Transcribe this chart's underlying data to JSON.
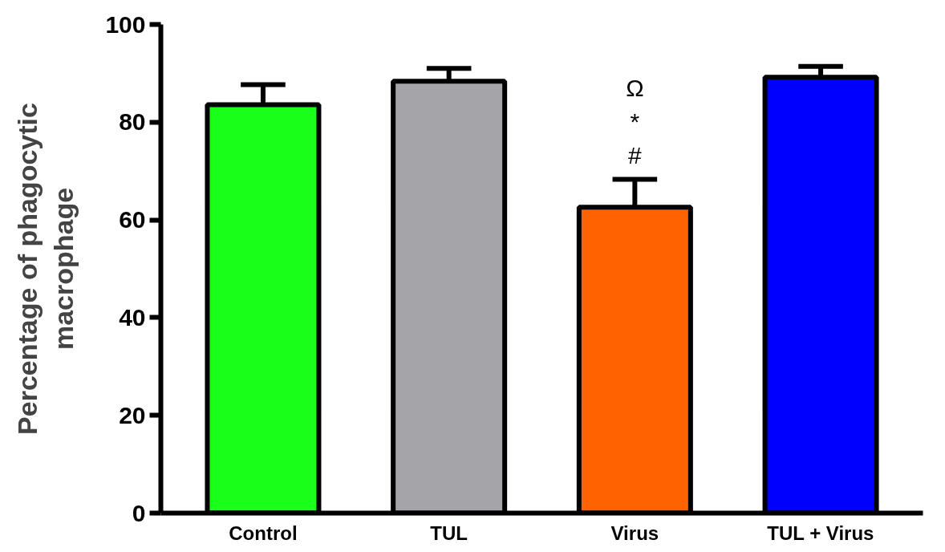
{
  "chart_data": {
    "type": "bar",
    "ylabel": "Percentage of phagocytic\nmacrophage",
    "categories": [
      "Control",
      "TUL",
      "Virus",
      "TUL + Virus"
    ],
    "values": [
      83.6,
      88.4,
      62.6,
      89.2
    ],
    "colors": [
      "#1aff1a",
      "#a5a4a9",
      "#ff6200",
      "#0000ff"
    ],
    "errors": [
      [
        83.6,
        87.7
      ],
      [
        88.4,
        91.0
      ],
      [
        62.6,
        68.3
      ],
      [
        89.2,
        91.4
      ]
    ],
    "ylim": [
      0,
      100
    ],
    "yticks": [
      0,
      20,
      40,
      60,
      80,
      100
    ],
    "grid": false,
    "annotations": [
      "Ω",
      "*",
      "#"
    ]
  }
}
